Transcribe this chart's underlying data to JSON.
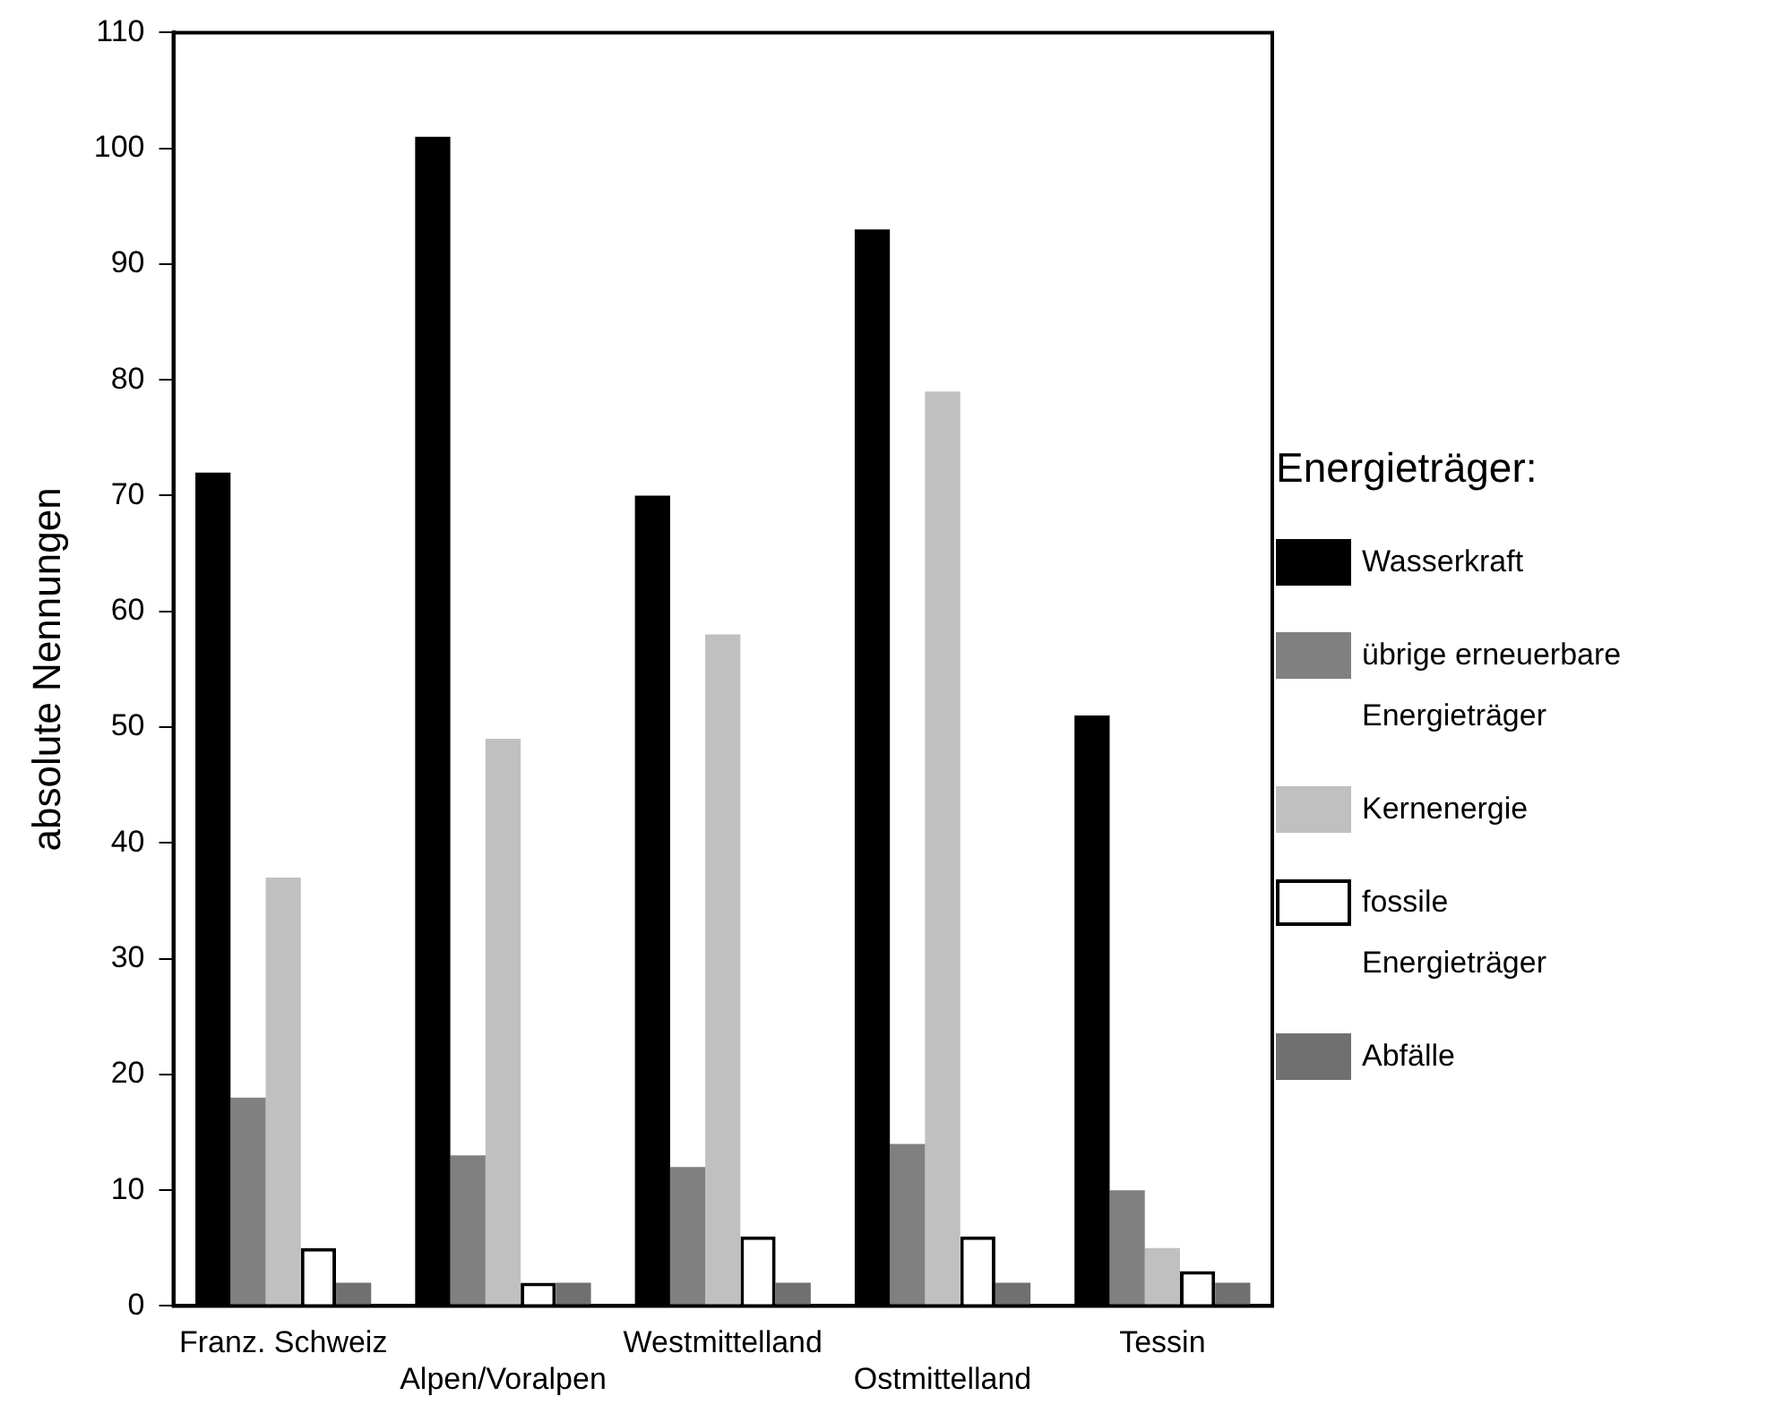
{
  "chart_data": {
    "type": "bar",
    "ylabel": "absolute Nennungen",
    "legend_title": "Energieträger:",
    "legend": "right",
    "categories": [
      "Franz. Schweiz",
      "Alpen/Voralpen",
      "Westmittelland",
      "Ostmittelland",
      "Tessin"
    ],
    "series": [
      {
        "name": "Wasserkraft",
        "color": "#000000",
        "values": [
          72,
          101,
          70,
          93,
          51
        ]
      },
      {
        "name": "übrige erneuerbare Energieträger",
        "color": "#808080",
        "values": [
          18,
          13,
          12,
          14,
          10
        ]
      },
      {
        "name": "Kernenergie",
        "color": "#c0c0c0",
        "values": [
          37,
          49,
          58,
          79,
          5
        ]
      },
      {
        "name": "fossile Energieträger",
        "color": "#ffffff",
        "values": [
          5,
          2,
          6,
          6,
          3
        ]
      },
      {
        "name": "Abfälle",
        "color": "#707070",
        "values": [
          2,
          2,
          2,
          2,
          2
        ]
      }
    ],
    "ylim": [
      0,
      110
    ],
    "yticks": [
      0,
      10,
      20,
      30,
      40,
      50,
      60,
      70,
      80,
      90,
      100,
      110
    ],
    "grid": false
  }
}
